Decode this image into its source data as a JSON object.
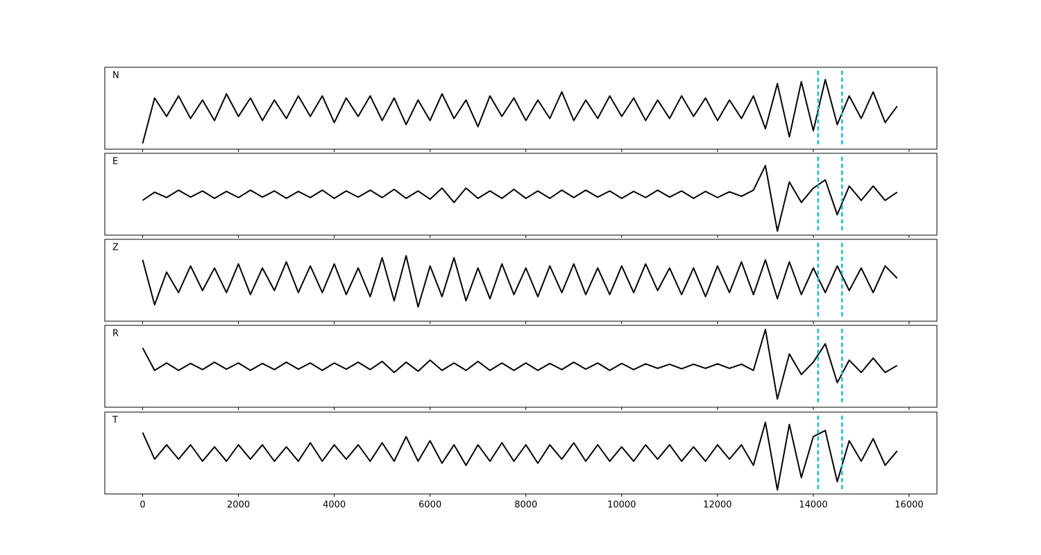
{
  "chart_data": {
    "type": "line",
    "subplots": true,
    "x": [
      0,
      250,
      500,
      750,
      1000,
      1250,
      1500,
      1750,
      2000,
      2250,
      2500,
      2750,
      3000,
      3250,
      3500,
      3750,
      4000,
      4250,
      4500,
      4750,
      5000,
      5250,
      5500,
      5750,
      6000,
      6250,
      6500,
      6750,
      7000,
      7250,
      7500,
      7750,
      8000,
      8250,
      8500,
      8750,
      9000,
      9250,
      9500,
      9750,
      10000,
      10250,
      10500,
      10750,
      11000,
      11250,
      11500,
      11750,
      12000,
      12250,
      12500,
      12750,
      13000,
      13250,
      13500,
      13750,
      14000,
      14250,
      14500,
      14750,
      15000,
      15250,
      15500,
      15750
    ],
    "series": [
      {
        "name": "N",
        "color": "#000000",
        "values": [
          -0.86,
          0.25,
          -0.2,
          0.3,
          -0.25,
          0.2,
          -0.3,
          0.35,
          -0.2,
          0.25,
          -0.3,
          0.2,
          -0.25,
          0.3,
          -0.2,
          0.3,
          -0.35,
          0.25,
          -0.2,
          0.3,
          -0.3,
          0.25,
          -0.4,
          0.2,
          -0.3,
          0.35,
          -0.25,
          0.2,
          -0.45,
          0.3,
          -0.2,
          0.25,
          -0.3,
          0.2,
          -0.25,
          0.4,
          -0.3,
          0.2,
          -0.25,
          0.3,
          -0.2,
          0.25,
          -0.3,
          0.2,
          -0.25,
          0.3,
          -0.2,
          0.25,
          -0.3,
          0.2,
          -0.25,
          0.3,
          -0.5,
          0.6,
          -0.7,
          0.65,
          -0.55,
          0.7,
          -0.4,
          0.3,
          -0.25,
          0.4,
          -0.35,
          0.05
        ]
      },
      {
        "name": "E",
        "color": "#000000",
        "values": [
          -0.15,
          0.05,
          -0.08,
          0.1,
          -0.07,
          0.08,
          -0.1,
          0.07,
          -0.08,
          0.1,
          -0.07,
          0.08,
          -0.1,
          0.07,
          -0.08,
          0.1,
          -0.1,
          0.08,
          -0.07,
          0.1,
          -0.08,
          0.12,
          -0.1,
          0.08,
          -0.12,
          0.15,
          -0.2,
          0.15,
          -0.1,
          0.08,
          -0.1,
          0.12,
          -0.1,
          0.08,
          -0.1,
          0.1,
          -0.08,
          0.1,
          -0.07,
          0.08,
          -0.1,
          0.07,
          -0.08,
          0.1,
          -0.07,
          0.08,
          -0.1,
          0.07,
          -0.08,
          0.06,
          -0.05,
          0.1,
          0.7,
          -0.9,
          0.3,
          -0.2,
          0.15,
          0.35,
          -0.5,
          0.2,
          -0.15,
          0.2,
          -0.15,
          0.05
        ]
      },
      {
        "name": "Z",
        "color": "#000000",
        "values": [
          0.5,
          -0.6,
          0.2,
          -0.3,
          0.35,
          -0.25,
          0.3,
          -0.3,
          0.4,
          -0.35,
          0.3,
          -0.25,
          0.45,
          -0.3,
          0.35,
          -0.3,
          0.4,
          -0.35,
          0.3,
          -0.4,
          0.55,
          -0.5,
          0.6,
          -0.65,
          0.35,
          -0.4,
          0.55,
          -0.5,
          0.3,
          -0.45,
          0.4,
          -0.35,
          0.3,
          -0.4,
          0.35,
          -0.3,
          0.4,
          -0.35,
          0.3,
          -0.35,
          0.35,
          -0.3,
          0.4,
          -0.25,
          0.3,
          -0.35,
          0.3,
          -0.4,
          0.35,
          -0.3,
          0.45,
          -0.35,
          0.5,
          -0.45,
          0.45,
          -0.35,
          0.3,
          -0.3,
          0.35,
          -0.25,
          0.3,
          -0.3,
          0.35,
          0.05
        ]
      },
      {
        "name": "R",
        "color": "#000000",
        "values": [
          0.45,
          -0.1,
          0.08,
          -0.1,
          0.07,
          -0.08,
          0.1,
          -0.07,
          0.08,
          -0.1,
          0.07,
          -0.08,
          0.1,
          -0.07,
          0.08,
          -0.1,
          0.08,
          -0.07,
          0.1,
          -0.08,
          0.12,
          -0.15,
          0.1,
          -0.12,
          0.15,
          -0.1,
          0.08,
          -0.1,
          0.12,
          -0.1,
          0.08,
          -0.1,
          0.08,
          -0.1,
          0.07,
          -0.08,
          0.1,
          -0.07,
          0.08,
          -0.1,
          0.07,
          -0.08,
          0.06,
          -0.05,
          0.05,
          -0.06,
          0.05,
          -0.05,
          0.06,
          -0.05,
          0.05,
          -0.1,
          0.9,
          -0.8,
          0.3,
          -0.2,
          0.1,
          0.55,
          -0.4,
          0.15,
          -0.15,
          0.2,
          -0.15,
          0.02
        ]
      },
      {
        "name": "T",
        "color": "#000000",
        "values": [
          0.5,
          -0.15,
          0.2,
          -0.15,
          0.2,
          -0.2,
          0.15,
          -0.2,
          0.2,
          -0.15,
          0.2,
          -0.2,
          0.15,
          -0.2,
          0.25,
          -0.2,
          0.2,
          -0.15,
          0.2,
          -0.2,
          0.25,
          -0.2,
          0.4,
          -0.2,
          0.3,
          -0.25,
          0.2,
          -0.3,
          0.2,
          -0.2,
          0.25,
          -0.2,
          0.2,
          -0.25,
          0.2,
          -0.15,
          0.25,
          -0.2,
          0.2,
          -0.2,
          0.15,
          -0.2,
          0.2,
          -0.15,
          0.2,
          -0.2,
          0.15,
          -0.2,
          0.2,
          -0.15,
          0.2,
          -0.3,
          0.75,
          -0.9,
          0.7,
          -0.6,
          0.4,
          0.55,
          -0.7,
          0.3,
          -0.2,
          0.35,
          -0.3,
          0.05
        ]
      }
    ],
    "xlim": [
      -790,
      16580
    ],
    "ylim": [
      -1,
      1
    ],
    "xticks": [
      0,
      2000,
      4000,
      6000,
      8000,
      10000,
      12000,
      14000,
      16000
    ],
    "vlines": [
      14100,
      14600
    ],
    "vline_color": "#17becf"
  }
}
